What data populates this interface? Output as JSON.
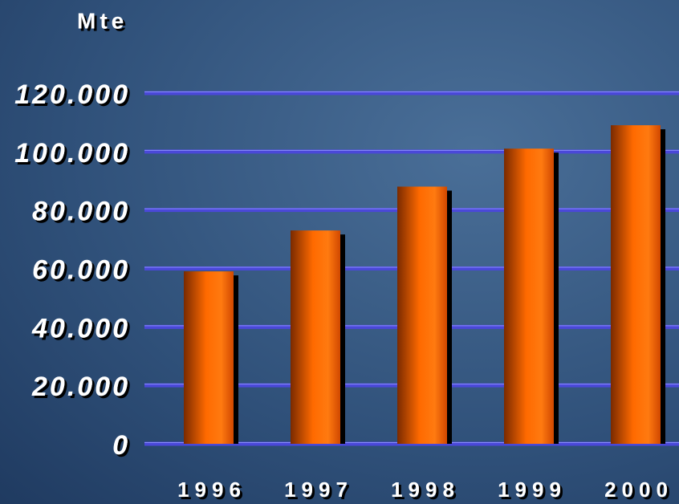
{
  "chart_data": {
    "type": "bar",
    "ylabel": "Mte",
    "categories": [
      "1996",
      "1997",
      "1998",
      "1999",
      "2000"
    ],
    "values": [
      59000,
      73000,
      88000,
      101000,
      109000
    ],
    "color": "#ff6600",
    "ylim": [
      0,
      120000
    ],
    "yticks": [
      0,
      {
        "value": 20000,
        "label": "20.000"
      },
      {
        "value": 40000,
        "label": "40.000"
      },
      {
        "value": 60000,
        "label": "60.000"
      },
      {
        "value": 80000,
        "label": "80.000"
      },
      {
        "value": 100000,
        "label": "100.000"
      },
      {
        "value": 120000,
        "label": "120.000"
      }
    ],
    "grid": true
  }
}
